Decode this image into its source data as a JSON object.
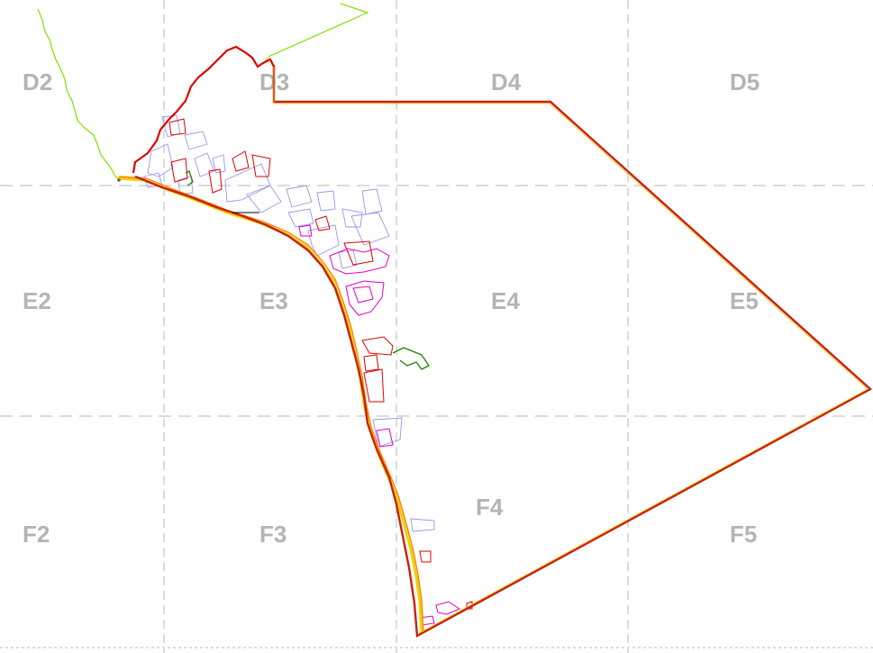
{
  "grid": {
    "cells": [
      {
        "id": "D2",
        "label": "D2"
      },
      {
        "id": "D3",
        "label": "D3"
      },
      {
        "id": "D4",
        "label": "D4"
      },
      {
        "id": "D5",
        "label": "D5"
      },
      {
        "id": "E2",
        "label": "E2"
      },
      {
        "id": "E3",
        "label": "E3"
      },
      {
        "id": "E4",
        "label": "E4"
      },
      {
        "id": "E5",
        "label": "E5"
      },
      {
        "id": "F2",
        "label": "F2"
      },
      {
        "id": "F3",
        "label": "F3"
      },
      {
        "id": "F4",
        "label": "F4"
      },
      {
        "id": "F5",
        "label": "F5"
      }
    ],
    "line_color": "#b8b8b8"
  },
  "colors": {
    "boundary": "#c82010",
    "boundary_inner": "#f0c000",
    "outer_red": "#e00000",
    "coast": "#80e000",
    "parcels_blue": "#9898e8",
    "parcels_red": "#e00000",
    "parcels_magenta": "#e000c0",
    "parcels_green": "#208000",
    "road_yellow": "#f0d000",
    "road_orange": "#ff8000"
  }
}
